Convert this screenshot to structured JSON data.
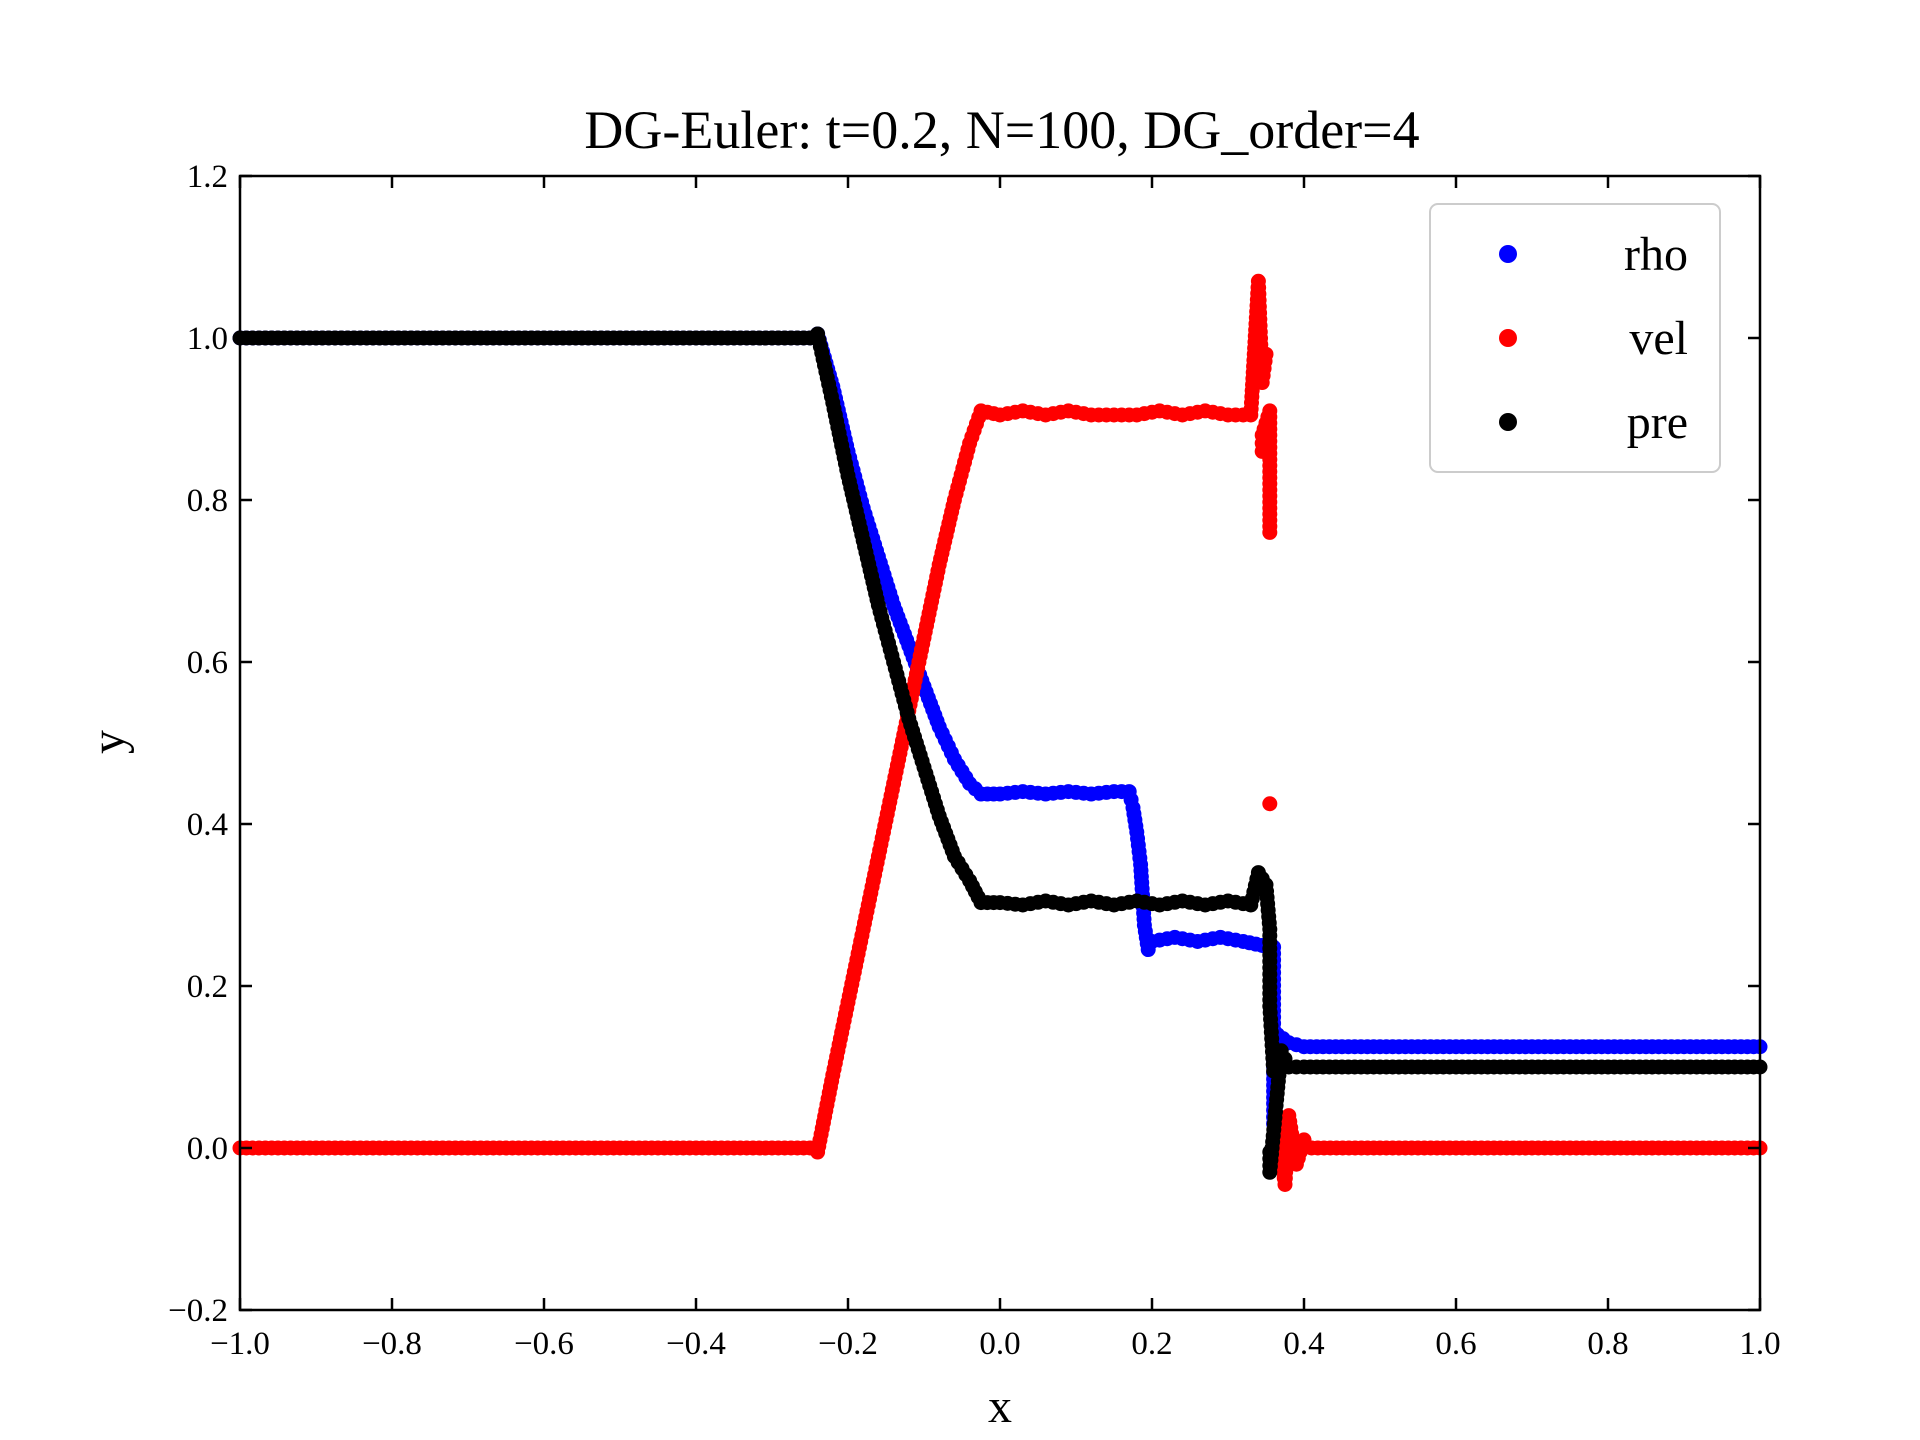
{
  "chart_data": {
    "type": "scatter",
    "title": "DG-Euler: t=0.2, N=100, DG_order=4",
    "xlabel": "x",
    "ylabel": "y",
    "xlim": [
      -1.0,
      1.0
    ],
    "ylim": [
      -0.2,
      1.2
    ],
    "xticks": [
      -1.0,
      -0.8,
      -0.6,
      -0.4,
      -0.2,
      0.0,
      0.2,
      0.4,
      0.6,
      0.8,
      1.0
    ],
    "xtick_labels": [
      "−1.0",
      "−0.8",
      "−0.6",
      "−0.4",
      "−0.2",
      "0.0",
      "0.2",
      "0.4",
      "0.6",
      "0.8",
      "1.0"
    ],
    "yticks": [
      -0.2,
      0.0,
      0.2,
      0.4,
      0.6,
      0.8,
      1.0,
      1.2
    ],
    "ytick_labels": [
      "−0.2",
      "0.0",
      "0.2",
      "0.4",
      "0.6",
      "0.8",
      "1.0",
      "1.2"
    ],
    "grid": false,
    "legend_position": "top-right",
    "series": [
      {
        "name": "rho",
        "color": "#0000ff",
        "points": [
          [
            -1.0,
            1.0
          ],
          [
            -0.9,
            1.0
          ],
          [
            -0.8,
            1.0
          ],
          [
            -0.7,
            1.0
          ],
          [
            -0.6,
            1.0
          ],
          [
            -0.5,
            1.0
          ],
          [
            -0.4,
            1.0
          ],
          [
            -0.3,
            1.0
          ],
          [
            -0.25,
            1.0
          ],
          [
            -0.24,
            1.005
          ],
          [
            -0.22,
            0.94
          ],
          [
            -0.2,
            0.86
          ],
          [
            -0.18,
            0.79
          ],
          [
            -0.16,
            0.73
          ],
          [
            -0.14,
            0.67
          ],
          [
            -0.12,
            0.62
          ],
          [
            -0.1,
            0.57
          ],
          [
            -0.08,
            0.52
          ],
          [
            -0.06,
            0.48
          ],
          [
            -0.04,
            0.45
          ],
          [
            -0.025,
            0.437
          ],
          [
            0.0,
            0.437
          ],
          [
            0.03,
            0.44
          ],
          [
            0.06,
            0.437
          ],
          [
            0.09,
            0.44
          ],
          [
            0.12,
            0.437
          ],
          [
            0.15,
            0.44
          ],
          [
            0.17,
            0.44
          ],
          [
            0.175,
            0.42
          ],
          [
            0.18,
            0.39
          ],
          [
            0.185,
            0.35
          ],
          [
            0.19,
            0.275
          ],
          [
            0.195,
            0.245
          ],
          [
            0.2,
            0.255
          ],
          [
            0.23,
            0.26
          ],
          [
            0.26,
            0.255
          ],
          [
            0.29,
            0.26
          ],
          [
            0.32,
            0.255
          ],
          [
            0.345,
            0.25
          ],
          [
            0.36,
            0.248
          ],
          [
            0.36,
            0.185
          ],
          [
            0.36,
            0.115
          ],
          [
            0.36,
            0.055
          ],
          [
            0.36,
            0.03
          ],
          [
            0.365,
            0.14
          ],
          [
            0.38,
            0.13
          ],
          [
            0.4,
            0.125
          ],
          [
            0.5,
            0.125
          ],
          [
            0.6,
            0.125
          ],
          [
            0.7,
            0.125
          ],
          [
            0.8,
            0.125
          ],
          [
            0.9,
            0.125
          ],
          [
            1.0,
            0.125
          ]
        ]
      },
      {
        "name": "vel",
        "color": "#ff0000",
        "points": [
          [
            -1.0,
            0.0
          ],
          [
            -0.9,
            0.0
          ],
          [
            -0.8,
            0.0
          ],
          [
            -0.7,
            0.0
          ],
          [
            -0.6,
            0.0
          ],
          [
            -0.5,
            0.0
          ],
          [
            -0.4,
            0.0
          ],
          [
            -0.3,
            0.0
          ],
          [
            -0.25,
            0.0
          ],
          [
            -0.24,
            -0.005
          ],
          [
            -0.22,
            0.09
          ],
          [
            -0.2,
            0.18
          ],
          [
            -0.18,
            0.27
          ],
          [
            -0.16,
            0.36
          ],
          [
            -0.14,
            0.45
          ],
          [
            -0.12,
            0.54
          ],
          [
            -0.1,
            0.63
          ],
          [
            -0.08,
            0.72
          ],
          [
            -0.06,
            0.8
          ],
          [
            -0.04,
            0.87
          ],
          [
            -0.025,
            0.91
          ],
          [
            0.0,
            0.905
          ],
          [
            0.03,
            0.91
          ],
          [
            0.06,
            0.905
          ],
          [
            0.09,
            0.91
          ],
          [
            0.12,
            0.905
          ],
          [
            0.15,
            0.905
          ],
          [
            0.18,
            0.905
          ],
          [
            0.21,
            0.91
          ],
          [
            0.24,
            0.905
          ],
          [
            0.27,
            0.91
          ],
          [
            0.3,
            0.905
          ],
          [
            0.33,
            0.905
          ],
          [
            0.34,
            1.07
          ],
          [
            0.345,
            0.945
          ],
          [
            0.35,
            0.98
          ],
          [
            0.345,
            0.86
          ],
          [
            0.345,
            0.88
          ],
          [
            0.355,
            0.91
          ],
          [
            0.355,
            0.76
          ],
          [
            0.355,
            0.425
          ],
          [
            0.365,
            0.035
          ],
          [
            0.375,
            -0.045
          ],
          [
            0.38,
            0.04
          ],
          [
            0.39,
            -0.02
          ],
          [
            0.4,
            0.01
          ],
          [
            0.41,
            0.0
          ],
          [
            0.5,
            0.0
          ],
          [
            0.6,
            0.0
          ],
          [
            0.7,
            0.0
          ],
          [
            0.8,
            0.0
          ],
          [
            0.9,
            0.0
          ],
          [
            1.0,
            0.0
          ]
        ]
      },
      {
        "name": "pre",
        "color": "#000000",
        "points": [
          [
            -1.0,
            1.0
          ],
          [
            -0.9,
            1.0
          ],
          [
            -0.8,
            1.0
          ],
          [
            -0.7,
            1.0
          ],
          [
            -0.6,
            1.0
          ],
          [
            -0.5,
            1.0
          ],
          [
            -0.4,
            1.0
          ],
          [
            -0.3,
            1.0
          ],
          [
            -0.25,
            1.0
          ],
          [
            -0.24,
            1.005
          ],
          [
            -0.22,
            0.92
          ],
          [
            -0.2,
            0.83
          ],
          [
            -0.18,
            0.75
          ],
          [
            -0.16,
            0.67
          ],
          [
            -0.14,
            0.6
          ],
          [
            -0.12,
            0.53
          ],
          [
            -0.1,
            0.47
          ],
          [
            -0.08,
            0.41
          ],
          [
            -0.06,
            0.36
          ],
          [
            -0.04,
            0.33
          ],
          [
            -0.025,
            0.303
          ],
          [
            0.0,
            0.303
          ],
          [
            0.03,
            0.3
          ],
          [
            0.06,
            0.305
          ],
          [
            0.09,
            0.3
          ],
          [
            0.12,
            0.305
          ],
          [
            0.15,
            0.3
          ],
          [
            0.18,
            0.305
          ],
          [
            0.21,
            0.3
          ],
          [
            0.24,
            0.305
          ],
          [
            0.27,
            0.3
          ],
          [
            0.3,
            0.305
          ],
          [
            0.33,
            0.3
          ],
          [
            0.34,
            0.34
          ],
          [
            0.35,
            0.325
          ],
          [
            0.355,
            0.27
          ],
          [
            0.355,
            0.175
          ],
          [
            0.36,
            0.095
          ],
          [
            0.355,
            -0.005
          ],
          [
            0.355,
            -0.03
          ],
          [
            0.37,
            0.12
          ],
          [
            0.38,
            0.1
          ],
          [
            0.4,
            0.1
          ],
          [
            0.5,
            0.1
          ],
          [
            0.6,
            0.1
          ],
          [
            0.7,
            0.1
          ],
          [
            0.8,
            0.1
          ],
          [
            0.9,
            0.1
          ],
          [
            1.0,
            0.1
          ]
        ]
      }
    ]
  }
}
